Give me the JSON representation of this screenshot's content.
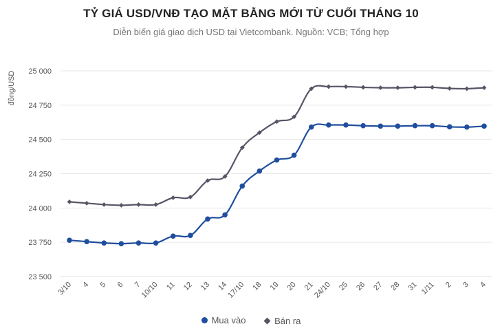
{
  "title": "TỶ GIÁ USD/VNĐ TẠO MẶT BẰNG MỚI TỪ CUỐI THÁNG 10",
  "subtitle": "Diễn biến giá giao dịch USD tại Vietcombank. Nguồn: VCB; Tổng hợp",
  "colors": {
    "series1": "#1f4e9e",
    "series2": "#555566",
    "grid": "#e6e6e6"
  },
  "chart_data": {
    "type": "line",
    "title": "TỶ GIÁ USD/VNĐ TẠO MẶT BẰNG MỚI TỪ CUỐI THÁNG 10",
    "subtitle": "Diễn biến giá giao dịch USD tại Vietcombank. Nguồn: VCB; Tổng hợp",
    "xlabel": "",
    "ylabel": "đồng/USD",
    "ylim": [
      23500,
      25000
    ],
    "yticks": [
      23500,
      23750,
      24000,
      24250,
      24500,
      24750,
      25000
    ],
    "ytick_labels": [
      "23 500",
      "23 750",
      "24 000",
      "24 250",
      "24 500",
      "24 750",
      "25 000"
    ],
    "grid": true,
    "legend_position": "bottom",
    "categories": [
      "3/10",
      "4",
      "5",
      "6",
      "7",
      "10/10",
      "11",
      "12",
      "13",
      "14",
      "17/10",
      "18",
      "19",
      "20",
      "21",
      "24/10",
      "25",
      "26",
      "27",
      "28",
      "31",
      "1/11",
      "2",
      "3",
      "4"
    ],
    "series": [
      {
        "name": "Mua vào",
        "marker": "circle",
        "color": "#1f4e9e",
        "values": [
          23765,
          23755,
          23745,
          23740,
          23745,
          23745,
          23795,
          23800,
          23920,
          23950,
          24160,
          24270,
          24350,
          24385,
          24590,
          24605,
          24605,
          24600,
          24597,
          24597,
          24600,
          24600,
          24592,
          24590,
          24597
        ]
      },
      {
        "name": "Bán ra",
        "marker": "diamond",
        "color": "#555566",
        "values": [
          24045,
          24035,
          24025,
          24020,
          24025,
          24025,
          24075,
          24080,
          24200,
          24230,
          24440,
          24550,
          24630,
          24665,
          24870,
          24885,
          24885,
          24880,
          24877,
          24877,
          24880,
          24880,
          24872,
          24870,
          24877
        ]
      }
    ]
  }
}
